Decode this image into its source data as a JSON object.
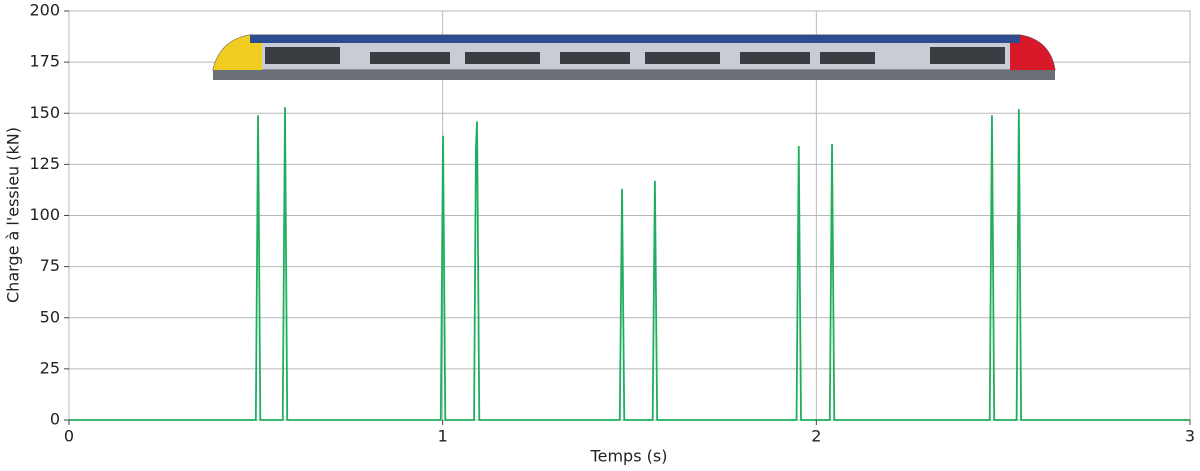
{
  "chart_data": {
    "type": "line",
    "xlabel": "Temps (s)",
    "ylabel": "Charge à l'essieu (kN)",
    "x": [
      0,
      0.5,
      0.506,
      0.512,
      0.572,
      0.578,
      0.584,
      0.995,
      1.001,
      1.007,
      1.084,
      1.089,
      1.092,
      1.098,
      1.474,
      1.48,
      1.486,
      1.562,
      1.568,
      1.574,
      1.947,
      1.953,
      1.959,
      2.036,
      2.042,
      2.048,
      2.464,
      2.47,
      2.476,
      2.536,
      2.542,
      2.548,
      3
    ],
    "series": [
      {
        "name": "Charge",
        "color": "#1fae5f",
        "values": [
          0,
          0,
          149,
          0,
          0,
          153,
          0,
          0,
          139,
          0,
          0,
          133,
          146,
          0,
          0,
          113,
          0,
          0,
          117,
          0,
          0,
          134,
          0,
          0,
          135,
          0,
          0,
          149,
          0,
          0,
          152,
          0,
          0
        ]
      }
    ],
    "xlim": [
      0,
      3
    ],
    "xticks": [
      0,
      1,
      2,
      3
    ],
    "ylim": [
      0,
      200
    ],
    "yticks": [
      0,
      25,
      50,
      75,
      100,
      125,
      150,
      175,
      200
    ],
    "grid": true
  }
}
